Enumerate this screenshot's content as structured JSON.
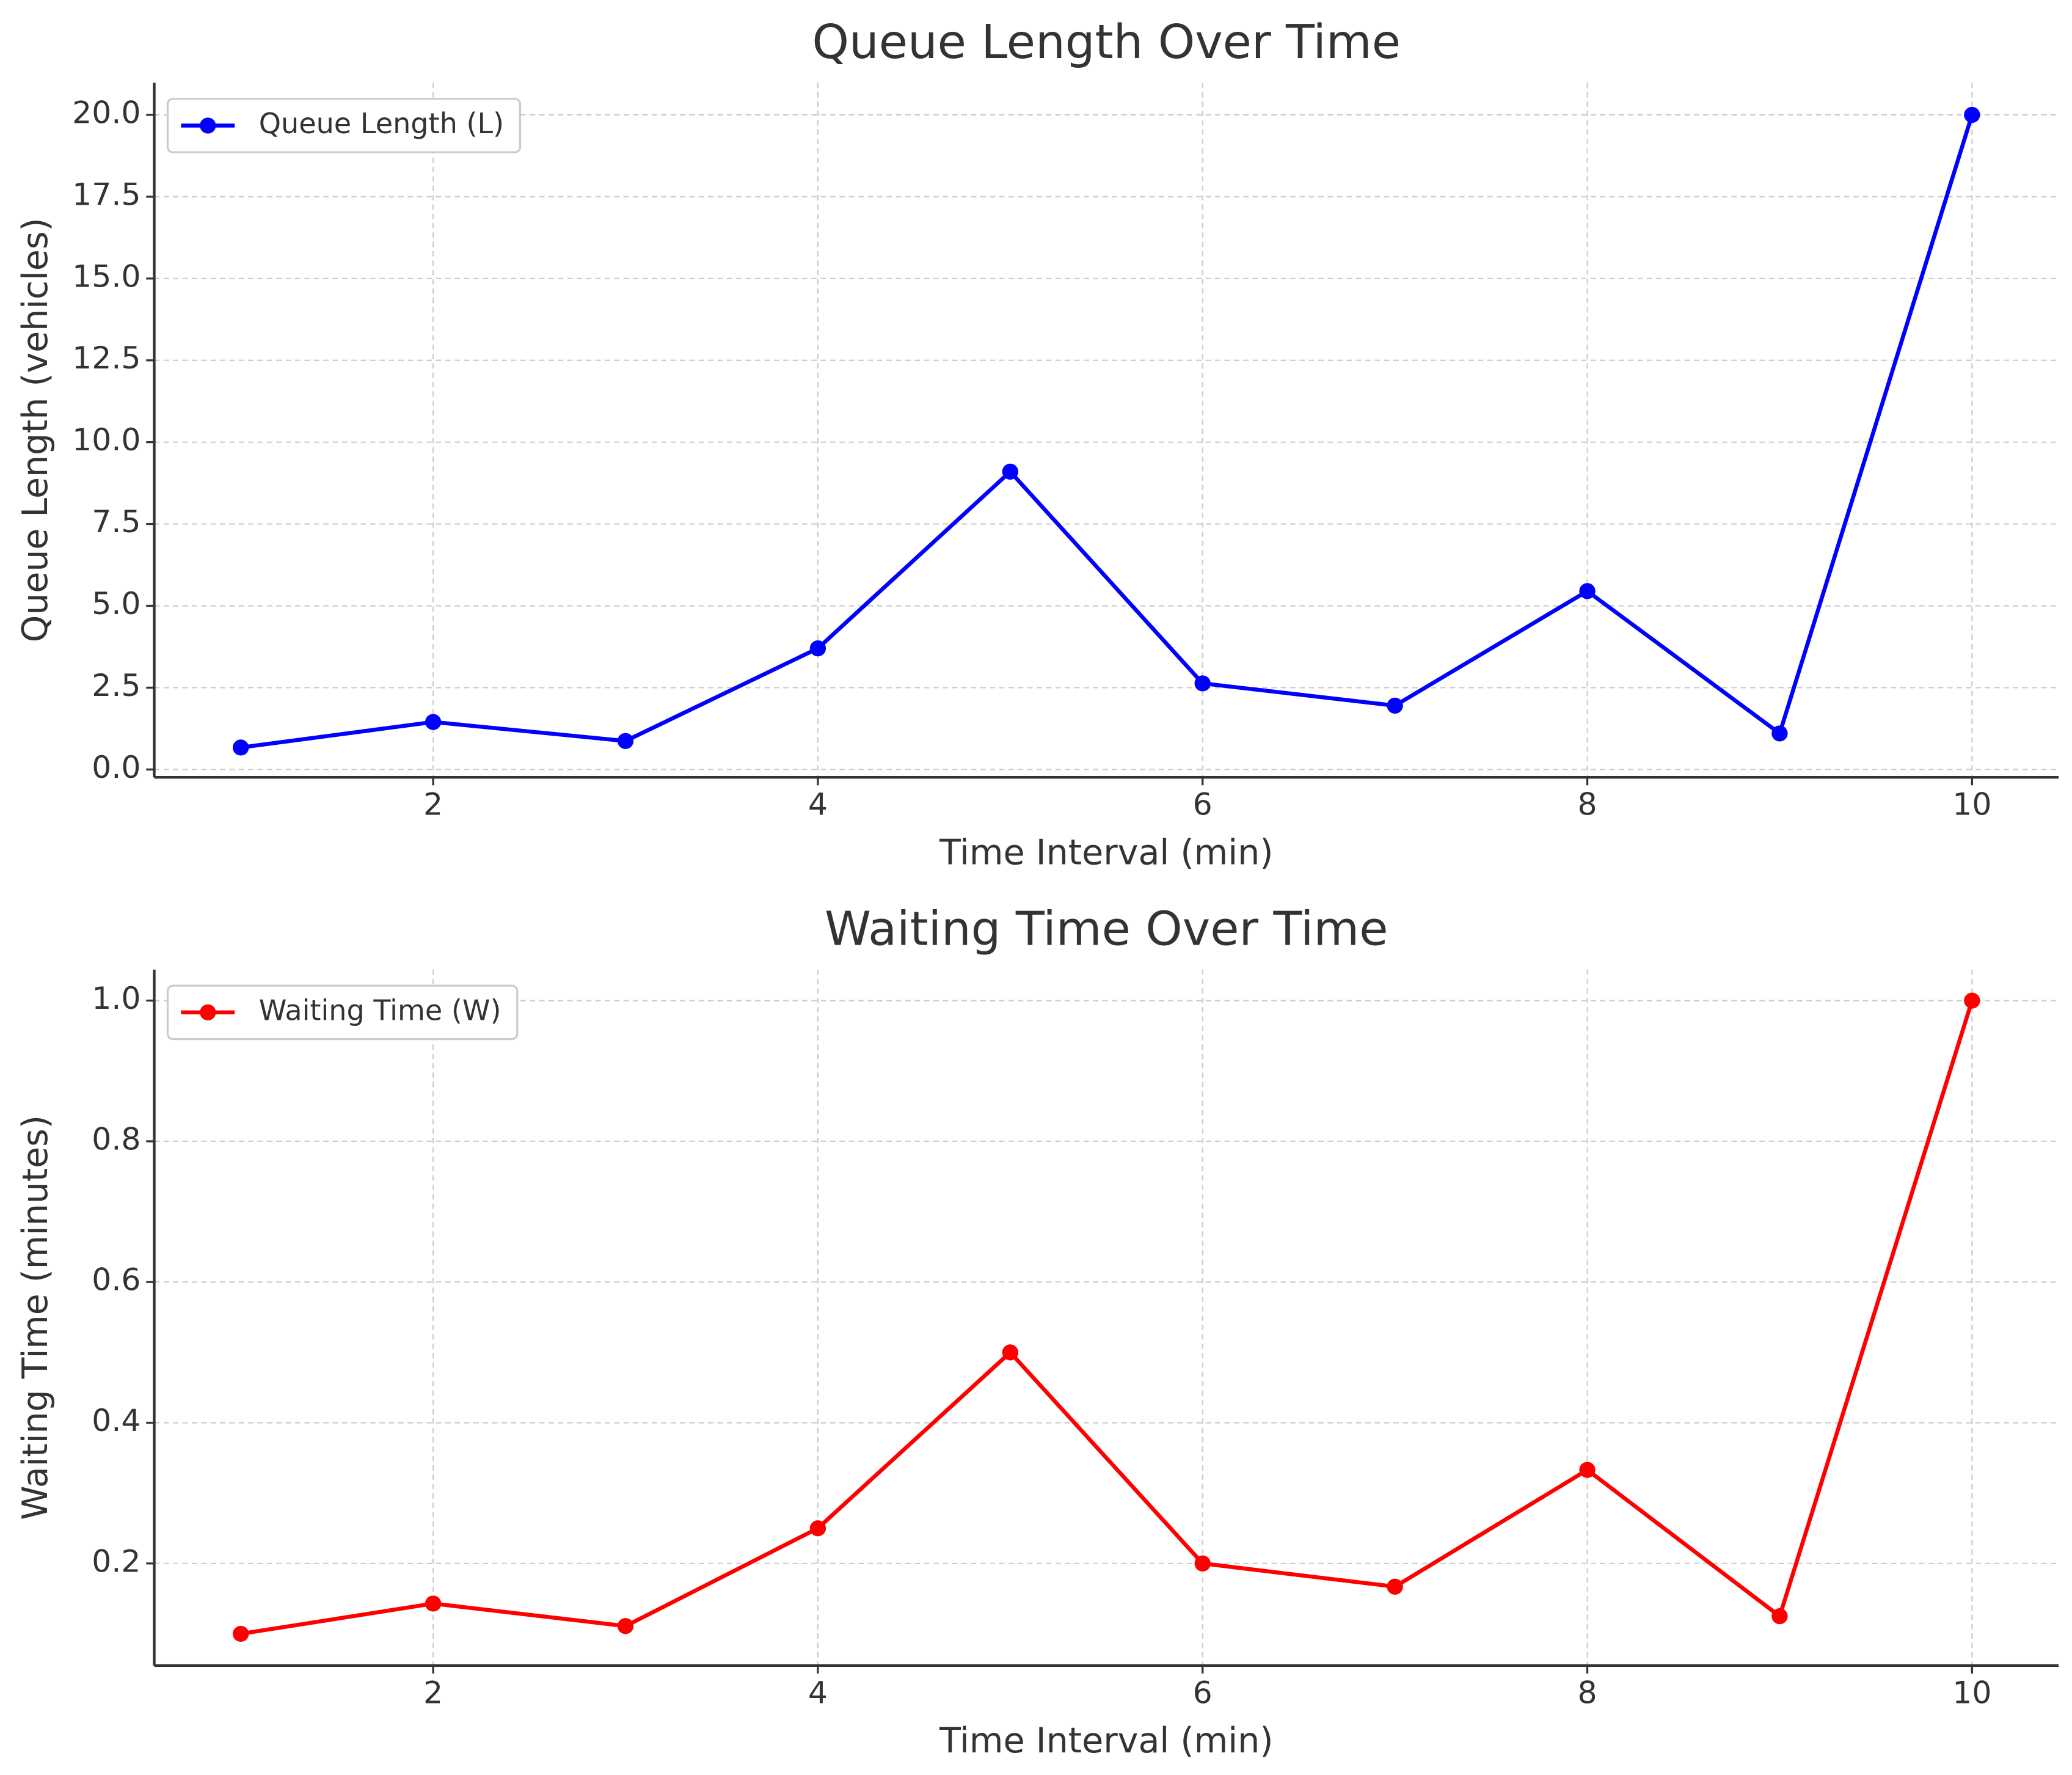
{
  "chart_data": [
    {
      "type": "line",
      "title": "Queue Length Over Time",
      "x_label": "Time Interval (min)",
      "y_label": "Queue Length (vehicles)",
      "x": [
        1,
        2,
        3,
        4,
        5,
        6,
        7,
        8,
        9,
        10
      ],
      "series": [
        {
          "name": "Queue Length (L)",
          "color": "#0000ff",
          "values": [
            0.67,
            1.45,
            0.87,
            3.7,
            9.1,
            2.63,
            1.95,
            5.45,
            1.1,
            20.0
          ]
        }
      ],
      "xlim": [
        0.55,
        10.45
      ],
      "xticks": [
        2,
        4,
        6,
        8,
        10
      ],
      "ylim": [
        -0.24,
        20.98
      ],
      "yticks": [
        {
          "value": 0,
          "label": "0.0"
        },
        2.5,
        {
          "value": 5,
          "label": "5.0"
        },
        7.5,
        {
          "value": 10,
          "label": "10.0"
        },
        12.5,
        {
          "value": 15,
          "label": "15.0"
        },
        17.5,
        {
          "value": 20,
          "label": "20.0"
        }
      ],
      "grid": true,
      "legend": "upper left"
    },
    {
      "type": "line",
      "title": "Waiting Time Over Time",
      "x_label": "Time Interval (min)",
      "y_label": "Waiting Time (minutes)",
      "x": [
        1,
        2,
        3,
        4,
        5,
        6,
        7,
        8,
        9,
        10
      ],
      "series": [
        {
          "name": "Waiting Time (W)",
          "color": "#ff0000",
          "values": [
            0.1,
            0.143,
            0.111,
            0.25,
            0.5,
            0.2,
            0.167,
            0.333,
            0.125,
            1.0
          ]
        }
      ],
      "xlim": [
        0.55,
        10.45
      ],
      "xticks": [
        2,
        4,
        6,
        8,
        10
      ],
      "ylim": [
        0.055,
        1.044
      ],
      "yticks": [
        0.2,
        0.4,
        0.6,
        0.8,
        {
          "value": 1,
          "label": "1.0"
        }
      ],
      "grid": true,
      "legend": "upper left"
    }
  ]
}
